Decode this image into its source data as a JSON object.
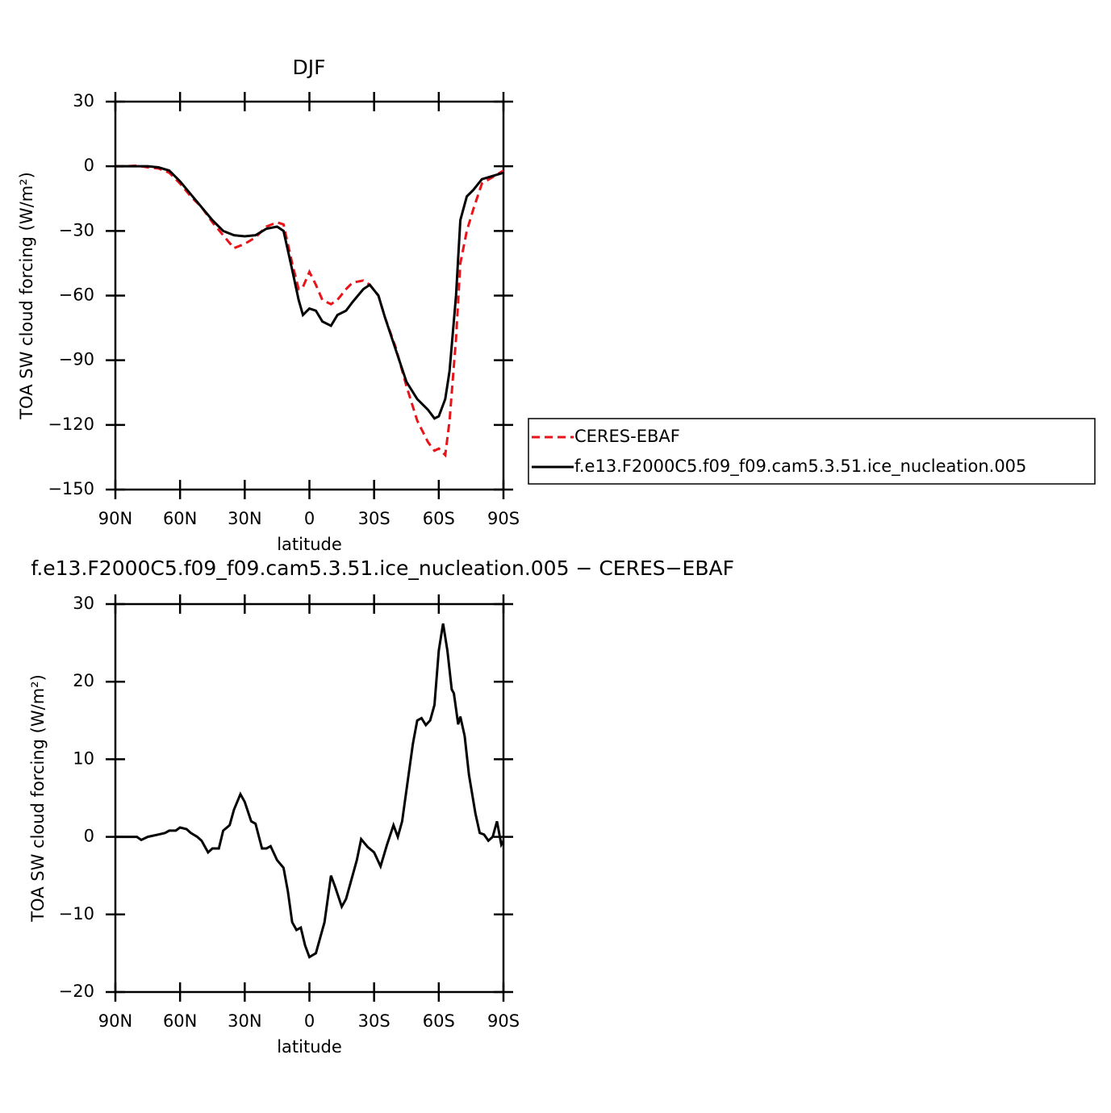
{
  "chart_data": [
    {
      "type": "line",
      "title": "DJF",
      "xlabel": "latitude",
      "ylabel": "TOA SW cloud forcing (W/m²)",
      "x": [
        90,
        85,
        80,
        75,
        70,
        65,
        60,
        55,
        50,
        45,
        40,
        35,
        30,
        25,
        20,
        15,
        12,
        8,
        5,
        3,
        0,
        -3,
        -6,
        -10,
        -13,
        -17,
        -20,
        -25,
        -28,
        -32,
        -35,
        -40,
        -45,
        -50,
        -55,
        -58,
        -60,
        -63,
        -65,
        -68,
        -70,
        -73,
        -76,
        -80,
        -85,
        -90
      ],
      "series": [
        {
          "name": "CERES-EBAF",
          "color": "#e8141a",
          "style": "dashed",
          "values": [
            0,
            0,
            0.3,
            -0.5,
            -1,
            -3,
            -8,
            -14,
            -19,
            -26,
            -32,
            -38,
            -36,
            -33,
            -28,
            -26,
            -27,
            -45,
            -57,
            -56,
            -49,
            -55,
            -62,
            -64,
            -62,
            -57,
            -54,
            -53,
            -55,
            -60,
            -70,
            -84,
            -102,
            -118,
            -128,
            -132,
            -131,
            -134,
            -118,
            -80,
            -45,
            -30,
            -20,
            -8,
            -5,
            -2
          ]
        },
        {
          "name": "f.e13.F2000C5.f09_f09.cam5.3.51.ice_nucleation.005",
          "color": "#000000",
          "style": "solid",
          "values": [
            0,
            0,
            0,
            0,
            -0.5,
            -2,
            -7,
            -13,
            -19,
            -25,
            -30,
            -32,
            -32.5,
            -32,
            -29,
            -28,
            -30,
            -48,
            -62,
            -69,
            -66,
            -67,
            -72,
            -74,
            -69,
            -67,
            -63,
            -57,
            -55,
            -60,
            -70,
            -85,
            -100,
            -108,
            -113,
            -117,
            -116,
            -108,
            -95,
            -60,
            -25,
            -14,
            -11,
            -6,
            -4.5,
            -3
          ]
        }
      ],
      "xlim": [
        90,
        -90
      ],
      "xticks": [
        {
          "value": 90,
          "label": "90N"
        },
        {
          "value": 60,
          "label": "60N"
        },
        {
          "value": 30,
          "label": "30N"
        },
        0,
        {
          "value": -30,
          "label": "30S"
        },
        {
          "value": -60,
          "label": "60S"
        },
        {
          "value": -90,
          "label": "90S"
        }
      ],
      "ylim": [
        -150,
        30
      ],
      "yticks": [
        {
          "value": -150,
          "label": "−150"
        },
        {
          "value": -120,
          "label": "−120"
        },
        {
          "value": -90,
          "label": "−90"
        },
        {
          "value": -60,
          "label": "−60"
        },
        {
          "value": -30,
          "label": "−30"
        },
        0,
        30
      ],
      "legend": "right"
    },
    {
      "type": "line",
      "title": "f.e13.F2000C5.f09_f09.cam5.3.51.ice_nucleation.005 − CERES−EBAF",
      "xlabel": "latitude",
      "ylabel": "TOA SW cloud forcing (W/m²)",
      "x": [
        90,
        80,
        78,
        75,
        70,
        67,
        65,
        62,
        60,
        57,
        55,
        52,
        50,
        47,
        45,
        42,
        40,
        37,
        35,
        32,
        30,
        27,
        25,
        22,
        20,
        18,
        15,
        12,
        10,
        8,
        6,
        4,
        2,
        0,
        -3,
        -5,
        -7,
        -10,
        -12,
        -15,
        -17,
        -20,
        -22,
        -24,
        -27,
        -30,
        -33,
        -36,
        -39,
        -41,
        -43,
        -46,
        -48,
        -50,
        -52,
        -54,
        -56,
        -58,
        -60,
        -62,
        -64,
        -66,
        -67,
        -69,
        -70,
        -72,
        -74,
        -77,
        -79,
        -81,
        -83,
        -85,
        -87,
        -89,
        -90
      ],
      "series": [
        {
          "color": "#000000",
          "style": "solid",
          "values": [
            0,
            0,
            -0.4,
            0,
            0.3,
            0.5,
            0.8,
            0.8,
            1.2,
            1,
            0.5,
            0,
            -0.5,
            -2,
            -1.5,
            -1.5,
            0.8,
            1.5,
            3.5,
            5.5,
            4.5,
            2,
            1.7,
            -1.5,
            -1.5,
            -1.2,
            -3,
            -4,
            -7,
            -11,
            -12,
            -11.7,
            -14,
            -15.5,
            -15,
            -13,
            -11,
            -5,
            -6.5,
            -9,
            -8,
            -5,
            -3,
            -0.3,
            -1.3,
            -2,
            -3.8,
            -1,
            1.5,
            0,
            2,
            8,
            12,
            15,
            15.3,
            14.4,
            15,
            17,
            24,
            27.5,
            24,
            19,
            18.5,
            14.5,
            15.5,
            13,
            8,
            3,
            0.5,
            0.3,
            -0.5,
            0,
            2,
            -1,
            -0.5
          ]
        }
      ],
      "xlim": [
        90,
        -90
      ],
      "xticks": [
        {
          "value": 90,
          "label": "90N"
        },
        {
          "value": 60,
          "label": "60N"
        },
        {
          "value": 30,
          "label": "30N"
        },
        0,
        {
          "value": -30,
          "label": "30S"
        },
        {
          "value": -60,
          "label": "60S"
        },
        {
          "value": -90,
          "label": "90S"
        }
      ],
      "ylim": [
        -20,
        30
      ],
      "yticks": [
        {
          "value": -20,
          "label": "−20"
        },
        {
          "value": -10,
          "label": "−10"
        },
        0,
        10,
        20,
        30
      ]
    }
  ]
}
